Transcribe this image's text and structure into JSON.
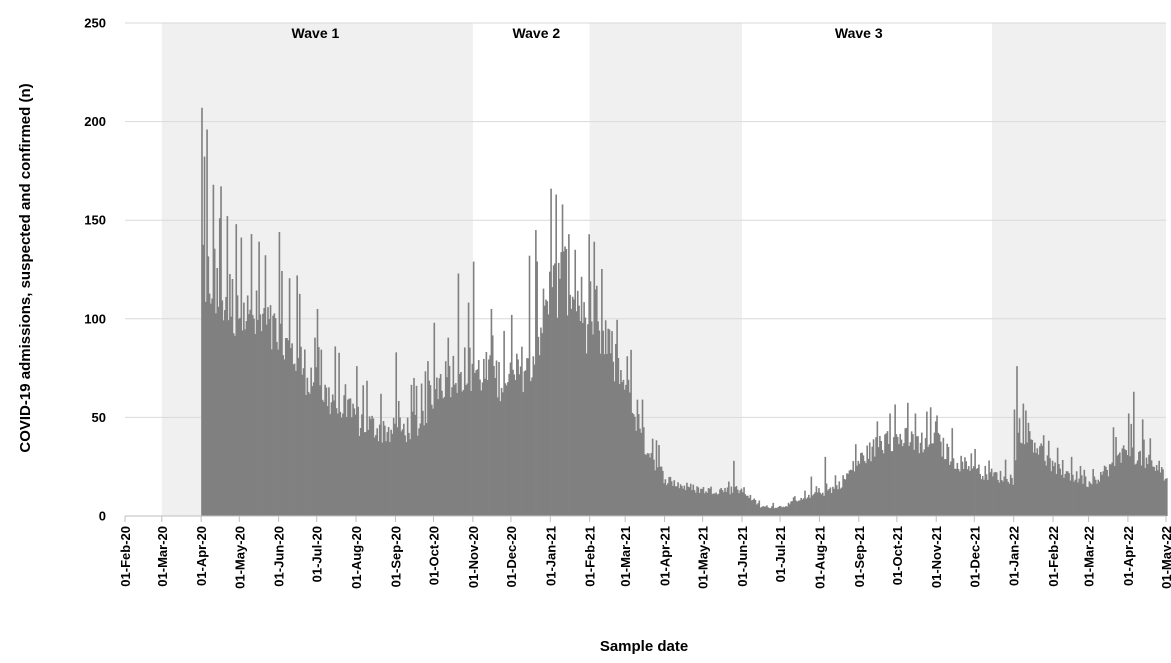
{
  "chart_data": {
    "type": "bar",
    "xlabel": "Sample date",
    "ylabel": "COVID-19 admissions, suspected and confirmed (n)",
    "ylim": [
      0,
      250
    ],
    "yticks": [
      0,
      50,
      100,
      150,
      200,
      250
    ],
    "grid": "horizontal",
    "bar_color": "#808080",
    "shade_color": "#f0f0f0",
    "x_range": [
      "2020-02-01",
      "2022-05-01"
    ],
    "x_tick_labels": [
      "01-Feb-20",
      "01-Mar-20",
      "01-Apr-20",
      "01-May-20",
      "01-Jun-20",
      "01-Jul-20",
      "01-Aug-20",
      "01-Sep-20",
      "01-Oct-20",
      "01-Nov-20",
      "01-Dec-20",
      "01-Jan-21",
      "01-Feb-21",
      "01-Mar-21",
      "01-Apr-21",
      "01-May-21",
      "01-Jun-21",
      "01-Jul-21",
      "01-Aug-21",
      "01-Sep-21",
      "01-Oct-21",
      "01-Nov-21",
      "01-Dec-21",
      "01-Jan-22",
      "01-Feb-22",
      "01-Mar-22",
      "01-Apr-22",
      "01-May-22"
    ],
    "shaded_periods": [
      {
        "start": "2020-03-01",
        "end": "2020-11-01"
      },
      {
        "start": "2021-02-01",
        "end": "2021-06-01"
      },
      {
        "start": "2021-12-15",
        "end": "2022-05-01"
      }
    ],
    "wave_labels": [
      {
        "text": "Wave 1",
        "date": "2020-06-30"
      },
      {
        "text": "Wave 2",
        "date": "2020-12-21"
      },
      {
        "text": "Wave 3",
        "date": "2021-09-01"
      }
    ],
    "series": [
      {
        "anchor_dates": [
          "2020-04-01",
          "2020-04-02",
          "2020-04-05",
          "2020-04-10",
          "2020-04-15",
          "2020-04-20",
          "2020-05-01",
          "2020-05-15",
          "2020-06-01",
          "2020-06-15",
          "2020-07-01",
          "2020-07-15",
          "2020-08-01",
          "2020-08-15",
          "2020-09-01",
          "2020-09-20",
          "2020-10-01",
          "2020-10-20",
          "2020-11-01",
          "2020-11-20",
          "2020-12-01",
          "2020-12-15",
          "2021-01-01",
          "2021-01-15",
          "2021-02-01",
          "2021-02-15",
          "2021-03-01",
          "2021-03-15",
          "2021-04-01",
          "2021-04-15",
          "2021-05-01",
          "2021-05-15",
          "2021-06-01",
          "2021-06-15",
          "2021-07-01",
          "2021-07-15",
          "2021-08-01",
          "2021-08-15",
          "2021-09-01",
          "2021-09-15",
          "2021-10-01",
          "2021-10-15",
          "2021-11-01",
          "2021-11-15",
          "2021-12-01",
          "2021-12-15",
          "2022-01-01",
          "2022-01-05",
          "2022-01-15",
          "2022-02-01",
          "2022-02-15",
          "2022-03-01",
          "2022-03-15",
          "2022-04-01",
          "2022-04-15",
          "2022-05-01"
        ],
        "anchor_values": [
          130,
          140,
          125,
          130,
          120,
          118,
          110,
          105,
          95,
          85,
          70,
          60,
          52,
          48,
          45,
          50,
          70,
          80,
          78,
          75,
          72,
          85,
          120,
          130,
          100,
          90,
          70,
          40,
          20,
          16,
          14,
          14,
          14,
          5,
          5,
          8,
          12,
          16,
          30,
          38,
          42,
          40,
          40,
          30,
          25,
          22,
          20,
          48,
          42,
          25,
          22,
          18,
          25,
          35,
          30,
          22
        ],
        "peaks": [
          {
            "date": "2020-04-01",
            "value": 207
          },
          {
            "date": "2020-04-05",
            "value": 196
          },
          {
            "date": "2020-04-10",
            "value": 168
          },
          {
            "date": "2020-04-15",
            "value": 151
          },
          {
            "date": "2020-04-28",
            "value": 148
          },
          {
            "date": "2020-05-10",
            "value": 143
          },
          {
            "date": "2020-06-01",
            "value": 144
          },
          {
            "date": "2020-06-15",
            "value": 122
          },
          {
            "date": "2020-07-01",
            "value": 105
          },
          {
            "date": "2020-07-15",
            "value": 86
          },
          {
            "date": "2020-08-01",
            "value": 76
          },
          {
            "date": "2020-08-20",
            "value": 62
          },
          {
            "date": "2020-09-01",
            "value": 83
          },
          {
            "date": "2020-09-15",
            "value": 70
          },
          {
            "date": "2020-10-01",
            "value": 98
          },
          {
            "date": "2020-10-20",
            "value": 123
          },
          {
            "date": "2020-11-01",
            "value": 129
          },
          {
            "date": "2020-11-15",
            "value": 105
          },
          {
            "date": "2020-12-01",
            "value": 102
          },
          {
            "date": "2020-12-15",
            "value": 132
          },
          {
            "date": "2020-12-20",
            "value": 145
          },
          {
            "date": "2021-01-01",
            "value": 166
          },
          {
            "date": "2021-01-05",
            "value": 163
          },
          {
            "date": "2021-01-10",
            "value": 158
          },
          {
            "date": "2021-01-20",
            "value": 135
          },
          {
            "date": "2021-02-01",
            "value": 119
          },
          {
            "date": "2021-02-15",
            "value": 95
          },
          {
            "date": "2021-02-25",
            "value": 74
          },
          {
            "date": "2021-03-10",
            "value": 59
          },
          {
            "date": "2021-03-15",
            "value": 45
          },
          {
            "date": "2021-05-25",
            "value": 28
          },
          {
            "date": "2021-07-25",
            "value": 20
          },
          {
            "date": "2021-08-05",
            "value": 30
          },
          {
            "date": "2021-09-15",
            "value": 48
          },
          {
            "date": "2021-09-25",
            "value": 52
          },
          {
            "date": "2021-10-15",
            "value": 52
          },
          {
            "date": "2021-11-01",
            "value": 51
          },
          {
            "date": "2021-12-01",
            "value": 34
          },
          {
            "date": "2022-01-01",
            "value": 54
          },
          {
            "date": "2022-01-03",
            "value": 76
          },
          {
            "date": "2022-01-08",
            "value": 57
          },
          {
            "date": "2022-02-15",
            "value": 30
          },
          {
            "date": "2022-03-20",
            "value": 45
          },
          {
            "date": "2022-04-01",
            "value": 52
          },
          {
            "date": "2022-04-05",
            "value": 63
          },
          {
            "date": "2022-04-12",
            "value": 49
          },
          {
            "date": "2022-04-25",
            "value": 28
          }
        ]
      }
    ]
  }
}
